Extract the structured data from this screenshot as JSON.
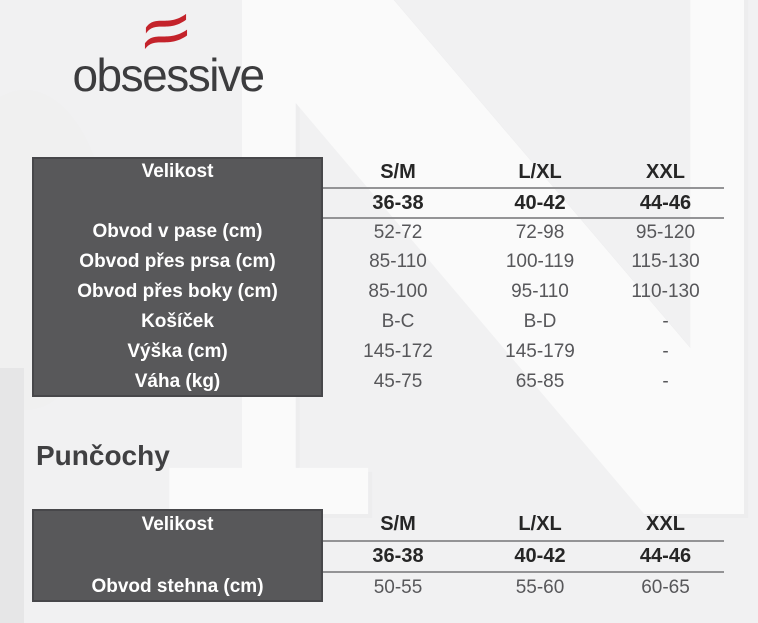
{
  "brand": {
    "name": "obsessive",
    "logo_color": "#c4232b"
  },
  "watermark": {
    "letter": "N"
  },
  "size_table": {
    "header_label": "Velikost",
    "columns": [
      "S/M",
      "L/XL",
      "XXL"
    ],
    "size_ranges": [
      "36-38",
      "40-42",
      "44-46"
    ],
    "rows": [
      {
        "label": "Obvod v pase (cm)",
        "values": [
          "52-72",
          "72-98",
          "95-120"
        ]
      },
      {
        "label": "Obvod přes prsa (cm)",
        "values": [
          "85-110",
          "100-119",
          "115-130"
        ]
      },
      {
        "label": "Obvod přes boky (cm)",
        "values": [
          "85-100",
          "95-110",
          "110-130"
        ]
      },
      {
        "label": "Košíček",
        "values": [
          "B-C",
          "B-D",
          "-"
        ]
      },
      {
        "label": "Výška (cm)",
        "values": [
          "145-172",
          "145-179",
          "-"
        ]
      },
      {
        "label": "Váha (kg)",
        "values": [
          "45-75",
          "65-85",
          "-"
        ]
      }
    ]
  },
  "stockings": {
    "title": "Punčochy",
    "table": {
      "header_label": "Velikost",
      "columns": [
        "S/M",
        "L/XL",
        "XXL"
      ],
      "size_ranges": [
        "36-38",
        "40-42",
        "44-46"
      ],
      "rows": [
        {
          "label": "Obvod stehna (cm)",
          "values": [
            "50-55",
            "55-60",
            "60-65"
          ]
        }
      ]
    }
  },
  "colors": {
    "panel_bg": "#58585a",
    "panel_border": "#47474a",
    "rule_line": "#949496",
    "heading_text": "#262626",
    "value_text": "#57575a",
    "background": "#f1f1f2",
    "logo_red": "#c4232b"
  }
}
